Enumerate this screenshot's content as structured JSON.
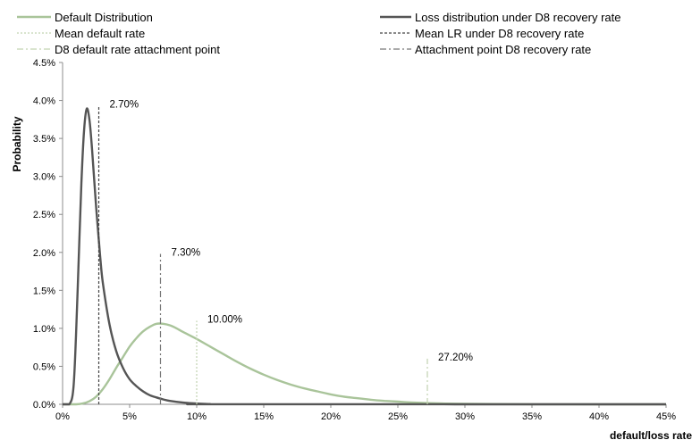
{
  "chart_data": {
    "type": "line",
    "title": "",
    "xlabel": "default/loss rate",
    "ylabel": "Probability",
    "xlim": [
      0,
      45
    ],
    "ylim": [
      0,
      4.5
    ],
    "x_ticks": [
      "0%",
      "5%",
      "10%",
      "15%",
      "20%",
      "25%",
      "30%",
      "35%",
      "40%",
      "45%"
    ],
    "y_ticks": [
      "0.0%",
      "0.5%",
      "1.0%",
      "1.5%",
      "2.0%",
      "2.5%",
      "3.0%",
      "3.5%",
      "4.0%",
      "4.5%"
    ],
    "grid": false,
    "legend_position": "top",
    "series": [
      {
        "name": "Default Distribution",
        "color": "#a9c49a",
        "style": "solid",
        "x": [
          0,
          1,
          1.5,
          2,
          2.5,
          3,
          3.5,
          4,
          4.5,
          5,
          5.5,
          6,
          6.5,
          7,
          7.5,
          8,
          8.5,
          9,
          10,
          11,
          12,
          13,
          14,
          15,
          16,
          17,
          18,
          19,
          20,
          21,
          22,
          23,
          24,
          25,
          26,
          28,
          30,
          35,
          40,
          45
        ],
        "y": [
          0,
          0,
          0.01,
          0.04,
          0.1,
          0.2,
          0.33,
          0.48,
          0.62,
          0.76,
          0.87,
          0.96,
          1.02,
          1.06,
          1.06,
          1.04,
          1.0,
          0.95,
          0.86,
          0.76,
          0.66,
          0.56,
          0.47,
          0.39,
          0.32,
          0.26,
          0.21,
          0.17,
          0.13,
          0.1,
          0.08,
          0.06,
          0.045,
          0.035,
          0.025,
          0.012,
          0.006,
          0.001,
          0,
          0
        ]
      },
      {
        "name": "Loss distribution under D8  recovery rate",
        "color": "#555555",
        "style": "solid",
        "x": [
          0,
          0.5,
          0.8,
          1.0,
          1.2,
          1.4,
          1.6,
          1.8,
          2.0,
          2.2,
          2.5,
          2.8,
          3.0,
          3.5,
          4.0,
          4.5,
          5.0,
          5.5,
          6.0,
          6.5,
          7.0,
          7.5,
          8.0,
          9.0,
          10.0,
          11.0,
          12.0,
          45
        ],
        "y": [
          0,
          0,
          0.2,
          0.9,
          1.9,
          2.9,
          3.6,
          3.89,
          3.75,
          3.35,
          2.6,
          1.95,
          1.6,
          1.05,
          0.7,
          0.48,
          0.33,
          0.24,
          0.17,
          0.12,
          0.09,
          0.065,
          0.045,
          0.022,
          0.01,
          0.004,
          0.001,
          0
        ]
      }
    ],
    "reference_lines": [
      {
        "name": "Mean default rate",
        "x": 10.0,
        "y_top": 1.1,
        "color": "#c2d3b0",
        "style": "dotted",
        "label": "10.00%"
      },
      {
        "name": "Mean LR under D8 recovery rate",
        "x": 2.7,
        "y_top": 3.93,
        "color": "#444444",
        "style": "dashed",
        "label": "2.70%"
      },
      {
        "name": "D8 default rate attachment point",
        "x": 27.2,
        "y_top": 0.6,
        "color": "#c2d3b0",
        "style": "dashdot",
        "label": "27.20%"
      },
      {
        "name": "Attachment point D8 recovery rate",
        "x": 7.3,
        "y_top": 1.98,
        "color": "#777777",
        "style": "dashdot",
        "label": "7.30%"
      }
    ]
  }
}
